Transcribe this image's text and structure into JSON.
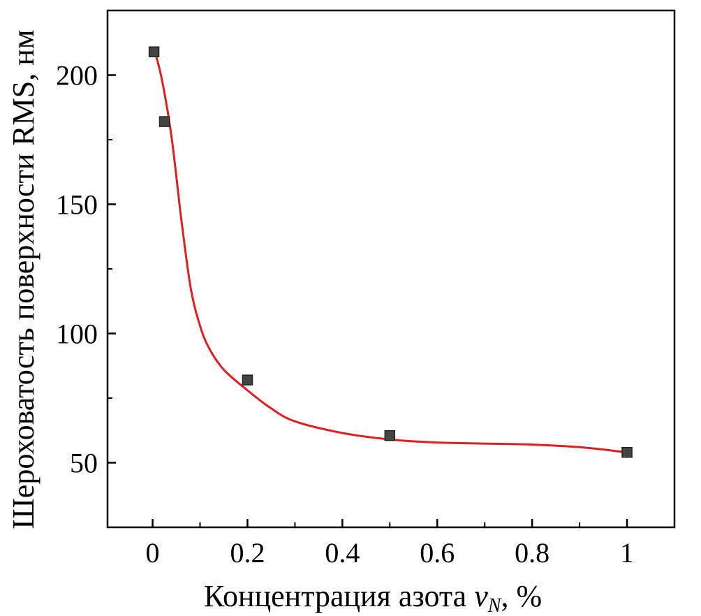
{
  "chart_data": {
    "type": "scatter",
    "xlabel": "Концентрация азота",
    "xlabel_var": "v",
    "xlabel_sub": "N",
    "xlabel_unit": ", %",
    "ylabel": "Шероховатость поверхности RMS, нм",
    "xlim": [
      -0.095,
      1.1
    ],
    "ylim": [
      25,
      225
    ],
    "xticks": [
      0,
      0.2,
      0.4,
      0.6,
      0.8,
      1
    ],
    "xtick_labels": [
      "0",
      "0.2",
      "0.4",
      "0.6",
      "0.8",
      "1"
    ],
    "xminor": [
      0.1,
      0.3,
      0.5,
      0.7,
      0.9
    ],
    "yticks": [
      50,
      100,
      150,
      200
    ],
    "ytick_labels": [
      "50",
      "100",
      "150",
      "200"
    ],
    "yminor": [
      75,
      125,
      175
    ],
    "grid": false,
    "series": [
      {
        "kind": "points",
        "marker": "square",
        "color": "#444444",
        "x": [
          0.003,
          0.025,
          0.2,
          0.5,
          1.0
        ],
        "y": [
          209,
          182,
          82,
          60.5,
          54
        ]
      },
      {
        "kind": "fit-line",
        "color": "#e02020",
        "x": [
          0.005,
          0.02,
          0.04,
          0.06,
          0.08,
          0.1,
          0.12,
          0.15,
          0.2,
          0.25,
          0.3,
          0.4,
          0.5,
          0.6,
          0.7,
          0.8,
          0.9,
          1.0
        ],
        "y": [
          209,
          198,
          176,
          145,
          118,
          103,
          94,
          86,
          78,
          71,
          66,
          61.5,
          59,
          57.8,
          57.4,
          57,
          56,
          54
        ]
      }
    ]
  }
}
